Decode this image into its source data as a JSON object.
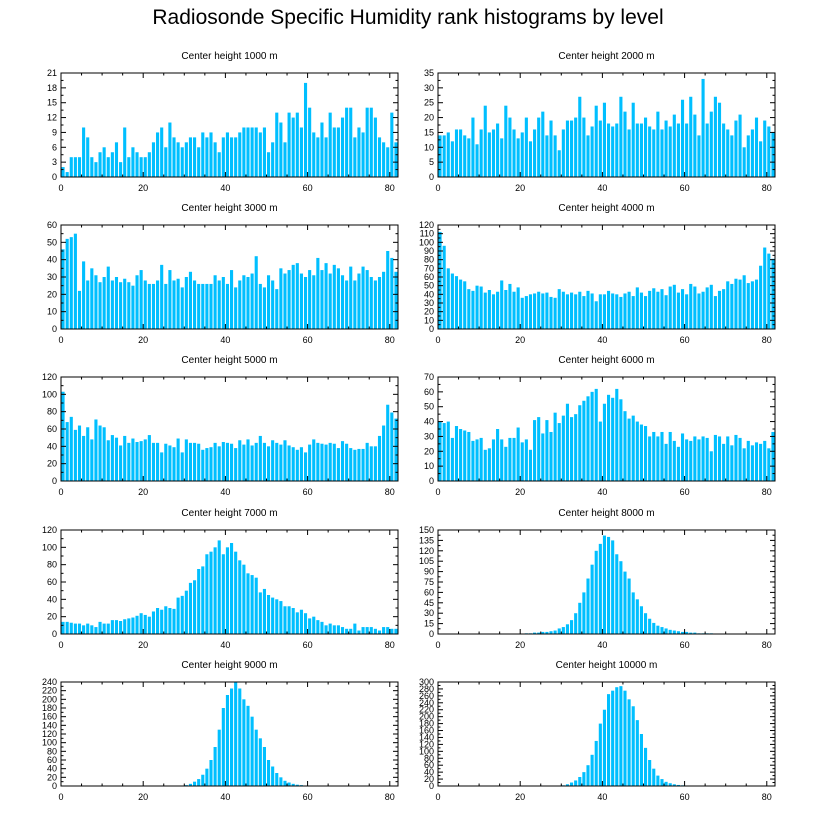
{
  "title": "Radiosonde Specific Humidity rank histograms by level",
  "bar_color": "#00bfff",
  "chart_data": [
    {
      "type": "bar",
      "title": "Center height 1000 m",
      "xlim": [
        0,
        82
      ],
      "ylim": [
        0,
        21
      ],
      "xticks": [
        0,
        20,
        40,
        60,
        80
      ],
      "yticks": [
        0,
        3,
        6,
        9,
        12,
        15,
        18,
        21
      ],
      "values": [
        2,
        1,
        4,
        4,
        4,
        10,
        8,
        4,
        3,
        5,
        6,
        4,
        5,
        7,
        3,
        10,
        4,
        6,
        5,
        4,
        4,
        5,
        7,
        9,
        10,
        6,
        11,
        8,
        7,
        6,
        7,
        8,
        8,
        6,
        9,
        8,
        9,
        7,
        5,
        8,
        9,
        8,
        8,
        9,
        10,
        10,
        10,
        10,
        9,
        10,
        5,
        7,
        13,
        11,
        7,
        13,
        12,
        13,
        10,
        19,
        14,
        9,
        8,
        11,
        8,
        13,
        10,
        10,
        12,
        14,
        14,
        8,
        10,
        9,
        14,
        14,
        12,
        8,
        7,
        6,
        13,
        7
      ]
    },
    {
      "type": "bar",
      "title": "Center height 2000 m",
      "xlim": [
        0,
        82
      ],
      "ylim": [
        0,
        35
      ],
      "xticks": [
        0,
        20,
        40,
        60,
        80
      ],
      "yticks": [
        0,
        5,
        10,
        15,
        20,
        25,
        30,
        35
      ],
      "values": [
        14,
        14,
        15,
        12,
        16,
        16,
        14,
        13,
        20,
        11,
        16,
        24,
        15,
        16,
        18,
        13,
        24,
        20,
        16,
        13,
        15,
        20,
        12,
        16,
        20,
        22,
        14,
        19,
        14,
        9,
        16,
        19,
        19,
        20,
        27,
        20,
        14,
        17,
        24,
        19,
        25,
        18,
        17,
        18,
        27,
        22,
        16,
        25,
        18,
        18,
        20,
        17,
        16,
        22,
        16,
        19,
        17,
        21,
        18,
        26,
        18,
        27,
        21,
        14,
        33,
        18,
        22,
        27,
        25,
        18,
        16,
        14,
        19,
        21,
        10,
        14,
        16,
        20,
        12,
        19,
        17,
        15
      ]
    },
    {
      "type": "bar",
      "title": "Center height 3000 m",
      "xlim": [
        0,
        82
      ],
      "ylim": [
        0,
        60
      ],
      "xticks": [
        0,
        20,
        40,
        60,
        80
      ],
      "yticks": [
        0,
        10,
        20,
        30,
        40,
        50,
        60
      ],
      "values": [
        46,
        52,
        53,
        55,
        22,
        39,
        28,
        35,
        31,
        27,
        30,
        36,
        28,
        30,
        27,
        29,
        27,
        25,
        31,
        34,
        28,
        26,
        26,
        28,
        37,
        26,
        34,
        28,
        29,
        24,
        30,
        33,
        28,
        26,
        26,
        26,
        26,
        31,
        28,
        30,
        26,
        34,
        24,
        28,
        31,
        30,
        32,
        42,
        26,
        24,
        31,
        28,
        23,
        35,
        32,
        34,
        37,
        38,
        32,
        30,
        34,
        31,
        41,
        34,
        38,
        32,
        37,
        35,
        31,
        28,
        36,
        28,
        32,
        36,
        34,
        30,
        28,
        30,
        33,
        45,
        41,
        33
      ]
    },
    {
      "type": "bar",
      "title": "Center height 4000 m",
      "xlim": [
        0,
        82
      ],
      "ylim": [
        0,
        120
      ],
      "xticks": [
        0,
        20,
        40,
        60,
        80
      ],
      "yticks": [
        0,
        10,
        20,
        30,
        40,
        50,
        60,
        70,
        80,
        90,
        100,
        110,
        120
      ],
      "values": [
        112,
        96,
        70,
        64,
        61,
        57,
        55,
        46,
        44,
        50,
        49,
        42,
        45,
        40,
        43,
        56,
        45,
        52,
        43,
        48,
        36,
        38,
        40,
        41,
        43,
        41,
        42,
        37,
        36,
        46,
        43,
        40,
        42,
        40,
        43,
        38,
        44,
        41,
        32,
        40,
        40,
        44,
        41,
        40,
        37,
        41,
        43,
        38,
        48,
        42,
        38,
        44,
        47,
        43,
        46,
        39,
        49,
        51,
        42,
        46,
        40,
        52,
        49,
        41,
        43,
        48,
        51,
        38,
        44,
        46,
        55,
        52,
        58,
        57,
        62,
        53,
        55,
        57,
        73,
        94,
        87,
        81
      ]
    },
    {
      "type": "bar",
      "title": "Center height 5000 m",
      "xlim": [
        0,
        82
      ],
      "ylim": [
        0,
        120
      ],
      "xticks": [
        0,
        20,
        40,
        60,
        80
      ],
      "yticks": [
        0,
        20,
        40,
        60,
        80,
        100,
        120
      ],
      "values": [
        103,
        68,
        74,
        59,
        64,
        52,
        62,
        48,
        71,
        64,
        62,
        47,
        53,
        50,
        41,
        52,
        44,
        49,
        45,
        46,
        48,
        53,
        44,
        44,
        33,
        43,
        41,
        39,
        49,
        33,
        48,
        44,
        44,
        43,
        36,
        38,
        39,
        44,
        40,
        45,
        44,
        43,
        38,
        47,
        42,
        48,
        41,
        44,
        52,
        44,
        40,
        47,
        44,
        42,
        47,
        41,
        39,
        36,
        39,
        33,
        42,
        48,
        44,
        43,
        42,
        44,
        43,
        38,
        46,
        43,
        38,
        36,
        37,
        37,
        44,
        40,
        40,
        52,
        64,
        88,
        79,
        72
      ]
    },
    {
      "type": "bar",
      "title": "Center height 6000 m",
      "xlim": [
        0,
        82
      ],
      "ylim": [
        0,
        70
      ],
      "xticks": [
        0,
        20,
        40,
        60,
        80
      ],
      "yticks": [
        0,
        10,
        20,
        30,
        40,
        50,
        60,
        70
      ],
      "values": [
        40,
        39,
        40,
        29,
        37,
        35,
        34,
        33,
        27,
        28,
        29,
        21,
        22,
        28,
        35,
        28,
        23,
        29,
        29,
        36,
        26,
        28,
        21,
        41,
        43,
        32,
        41,
        33,
        46,
        39,
        44,
        52,
        43,
        45,
        51,
        54,
        57,
        60,
        62,
        40,
        52,
        58,
        56,
        62,
        55,
        47,
        42,
        44,
        40,
        38,
        37,
        30,
        33,
        30,
        33,
        25,
        33,
        27,
        23,
        32,
        28,
        27,
        30,
        28,
        30,
        29,
        20,
        31,
        30,
        25,
        30,
        24,
        31,
        29,
        22,
        27,
        24,
        26,
        25,
        27,
        22,
        33
      ]
    },
    {
      "type": "bar",
      "title": "Center height 7000 m",
      "xlim": [
        0,
        82
      ],
      "ylim": [
        0,
        120
      ],
      "xticks": [
        0,
        20,
        40,
        60,
        80
      ],
      "yticks": [
        0,
        20,
        40,
        60,
        80,
        100,
        120
      ],
      "values": [
        14,
        14,
        13,
        12,
        12,
        10,
        12,
        10,
        8,
        14,
        12,
        12,
        16,
        16,
        15,
        17,
        18,
        19,
        21,
        24,
        22,
        20,
        26,
        30,
        28,
        32,
        30,
        29,
        42,
        44,
        50,
        59,
        62,
        75,
        78,
        92,
        95,
        100,
        108,
        92,
        100,
        105,
        95,
        85,
        80,
        70,
        68,
        65,
        48,
        52,
        45,
        42,
        40,
        38,
        32,
        32,
        30,
        25,
        28,
        24,
        18,
        20,
        16,
        14,
        10,
        12,
        10,
        10,
        8,
        6,
        6,
        12,
        4,
        8,
        8,
        8,
        6,
        4,
        8,
        8,
        6,
        6
      ]
    },
    {
      "type": "bar",
      "title": "Center height 8000 m",
      "xlim": [
        0,
        82
      ],
      "ylim": [
        0,
        150
      ],
      "xticks": [
        0,
        20,
        40,
        60,
        80
      ],
      "yticks": [
        0,
        15,
        30,
        45,
        60,
        75,
        90,
        105,
        120,
        135,
        150
      ],
      "values": [
        0,
        0,
        0,
        0,
        0,
        0,
        0,
        0,
        0,
        0,
        0,
        0,
        0,
        0,
        0,
        0,
        0,
        0,
        0,
        0,
        0,
        1,
        1,
        2,
        2,
        3,
        3,
        4,
        5,
        8,
        10,
        14,
        20,
        30,
        45,
        60,
        80,
        100,
        120,
        130,
        142,
        140,
        135,
        115,
        105,
        90,
        80,
        60,
        50,
        40,
        30,
        22,
        16,
        12,
        10,
        8,
        6,
        5,
        4,
        3,
        3,
        2,
        2,
        1,
        1,
        1,
        1,
        0,
        0,
        0,
        0,
        0,
        0,
        0,
        0,
        0,
        0,
        0,
        0,
        0,
        0,
        0
      ]
    },
    {
      "type": "bar",
      "title": "Center height 9000 m",
      "xlim": [
        0,
        82
      ],
      "ylim": [
        0,
        240
      ],
      "xticks": [
        0,
        20,
        40,
        60,
        80
      ],
      "yticks": [
        0,
        20,
        40,
        60,
        80,
        100,
        120,
        140,
        160,
        180,
        200,
        220,
        240
      ],
      "values": [
        0,
        0,
        0,
        0,
        0,
        0,
        0,
        0,
        0,
        0,
        0,
        0,
        0,
        0,
        0,
        0,
        0,
        0,
        0,
        0,
        0,
        0,
        0,
        0,
        0,
        0,
        0,
        0,
        0,
        0,
        2,
        5,
        10,
        16,
        26,
        40,
        60,
        90,
        130,
        180,
        210,
        225,
        240,
        225,
        200,
        185,
        160,
        130,
        110,
        90,
        60,
        45,
        30,
        20,
        12,
        8,
        5,
        3,
        2,
        1,
        1,
        0,
        0,
        0,
        0,
        0,
        0,
        0,
        0,
        0,
        0,
        0,
        0,
        0,
        0,
        0,
        0,
        0,
        0,
        0,
        0,
        0
      ]
    },
    {
      "type": "bar",
      "title": "Center height 10000 m",
      "xlim": [
        0,
        82
      ],
      "ylim": [
        0,
        300
      ],
      "xticks": [
        0,
        20,
        40,
        60,
        80
      ],
      "yticks": [
        0,
        20,
        40,
        60,
        80,
        100,
        120,
        140,
        160,
        180,
        200,
        220,
        240,
        260,
        280,
        300
      ],
      "values": [
        0,
        0,
        0,
        0,
        0,
        0,
        0,
        0,
        0,
        0,
        0,
        0,
        0,
        0,
        0,
        0,
        0,
        0,
        0,
        0,
        0,
        0,
        0,
        0,
        0,
        0,
        0,
        0,
        0,
        0,
        2,
        5,
        10,
        16,
        26,
        40,
        60,
        90,
        130,
        180,
        220,
        265,
        275,
        285,
        288,
        275,
        250,
        230,
        190,
        150,
        110,
        75,
        50,
        30,
        20,
        12,
        8,
        5,
        3,
        2,
        1,
        0,
        0,
        0,
        0,
        0,
        0,
        0,
        0,
        0,
        0,
        0,
        0,
        0,
        0,
        0,
        0,
        0,
        0,
        0,
        0,
        0
      ]
    }
  ]
}
